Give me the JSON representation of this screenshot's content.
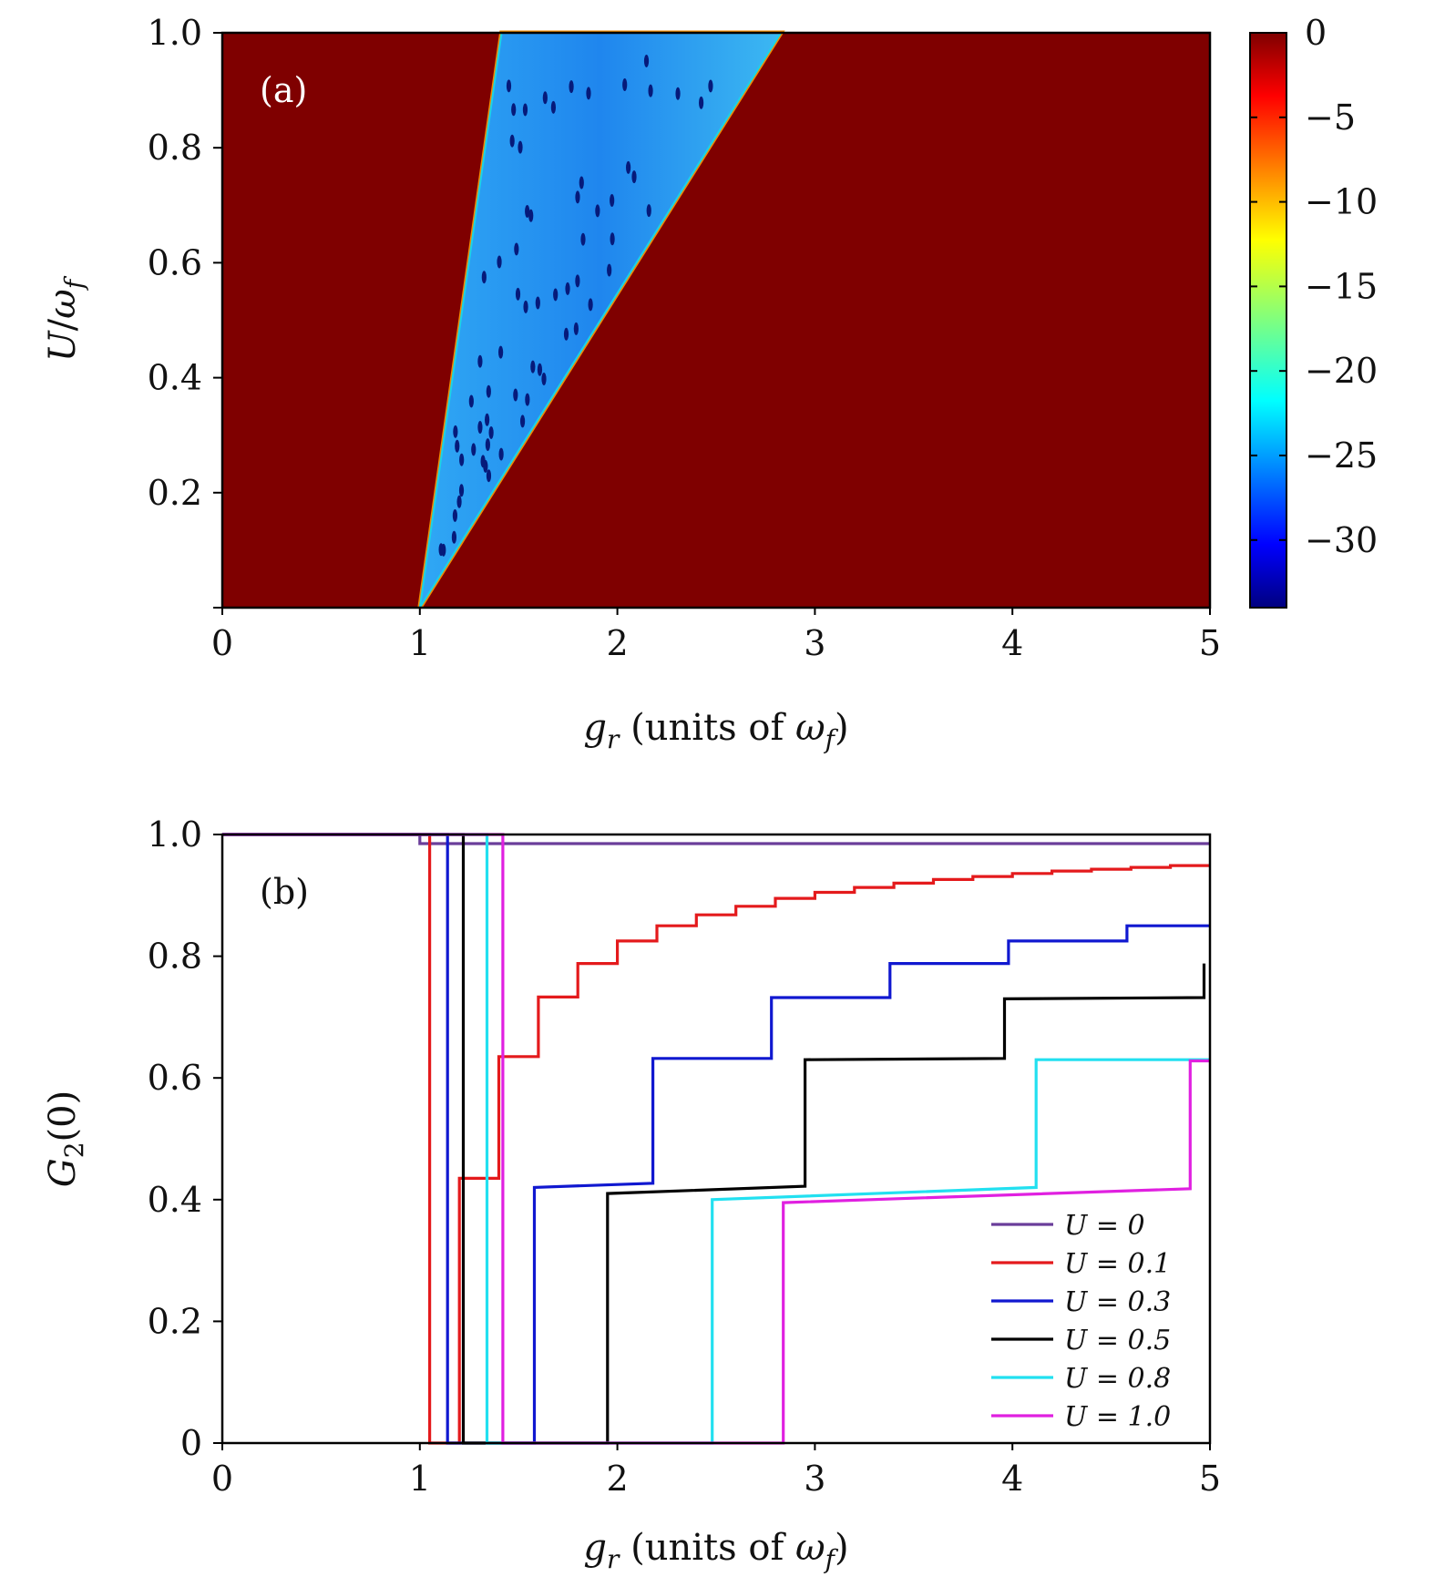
{
  "panel_a": {
    "label": "(a)",
    "xlabel": "g_r (units of ω_f)",
    "ylabel": "U/ω_f"
  },
  "panel_b": {
    "label": "(b)",
    "xlabel": "g_r (units of ω_f)",
    "ylabel": "G_2(0)"
  },
  "colors": {
    "background_region": "#7f0000",
    "region_fill": "#2a8cf0",
    "spots": "#061a7a",
    "U=0": "#6a3d9a",
    "U=0.1": "#e41a1c",
    "U=0.3": "#1018d0",
    "U=0.5": "#000000",
    "U=0.8": "#22e0f0",
    "U=1.0": "#e020e0"
  },
  "chart_data": [
    {
      "type": "heatmap",
      "title": "",
      "panel": "(a)",
      "xlabel": "g_r (units of ω_f)",
      "ylabel": "U/ω_f",
      "xlim": [
        0,
        5
      ],
      "ylim": [
        0,
        1
      ],
      "xticks": [
        "0",
        "1",
        "2",
        "3",
        "4",
        "5"
      ],
      "yticks": [
        "0.2",
        "0.4",
        "0.6",
        "0.8",
        "1.0"
      ],
      "colorbar": {
        "range": [
          -34,
          0
        ],
        "ticks": [
          "0",
          "−5",
          "−10",
          "−15",
          "−20",
          "−25",
          "−30"
        ],
        "tick_values": [
          0,
          -5,
          -10,
          -15,
          -20,
          -25,
          -30
        ],
        "colormap": "jet"
      },
      "regions": [
        {
          "description": "background value",
          "value": 0
        },
        {
          "description": "wedge of low values",
          "value": -24,
          "boundary_left": [
            [
              1.0,
              0.0
            ],
            [
              1.414,
              1.0
            ]
          ],
          "boundary_right": [
            [
              1.0,
              0.0
            ],
            [
              2.828,
              1.0
            ]
          ]
        }
      ],
      "grid": false
    },
    {
      "type": "line",
      "title": "",
      "panel": "(b)",
      "xlabel": "g_r (units of ω_f)",
      "ylabel": "G_2(0)",
      "xlim": [
        0,
        5
      ],
      "ylim": [
        0,
        1
      ],
      "xticks": [
        "0",
        "1",
        "2",
        "3",
        "4",
        "5"
      ],
      "yticks": [
        "0",
        "0.2",
        "0.4",
        "0.6",
        "0.8",
        "1.0"
      ],
      "legend_position": "bottom-right",
      "grid": false,
      "series": [
        {
          "name": "U = 0",
          "color": "#6a3d9a",
          "points": [
            [
              0,
              1.0
            ],
            [
              1.0,
              1.0
            ],
            [
              1.0,
              0.985
            ],
            [
              5,
              0.985
            ]
          ]
        },
        {
          "name": "U = 0.1",
          "color": "#e41a1c",
          "points": [
            [
              0,
              1.0
            ],
            [
              1.05,
              1.0
            ],
            [
              1.05,
              0.0
            ],
            [
              1.2,
              0.0
            ],
            [
              1.2,
              0.435
            ],
            [
              1.4,
              0.435
            ],
            [
              1.4,
              0.635
            ],
            [
              1.6,
              0.635
            ],
            [
              1.6,
              0.733
            ],
            [
              1.8,
              0.733
            ],
            [
              1.8,
              0.788
            ],
            [
              2.0,
              0.788
            ],
            [
              2.0,
              0.825
            ],
            [
              2.2,
              0.825
            ],
            [
              2.2,
              0.85
            ],
            [
              2.4,
              0.85
            ],
            [
              2.4,
              0.868
            ],
            [
              2.6,
              0.868
            ],
            [
              2.6,
              0.882
            ],
            [
              2.8,
              0.882
            ],
            [
              2.8,
              0.895
            ],
            [
              3.0,
              0.895
            ],
            [
              3.0,
              0.905
            ],
            [
              3.2,
              0.905
            ],
            [
              3.2,
              0.913
            ],
            [
              3.4,
              0.913
            ],
            [
              3.4,
              0.92
            ],
            [
              3.6,
              0.92
            ],
            [
              3.6,
              0.926
            ],
            [
              3.8,
              0.926
            ],
            [
              3.8,
              0.931
            ],
            [
              4.0,
              0.931
            ],
            [
              4.0,
              0.936
            ],
            [
              4.2,
              0.936
            ],
            [
              4.2,
              0.94
            ],
            [
              4.4,
              0.94
            ],
            [
              4.4,
              0.943
            ],
            [
              4.6,
              0.943
            ],
            [
              4.6,
              0.946
            ],
            [
              4.8,
              0.946
            ],
            [
              4.8,
              0.949
            ],
            [
              5.0,
              0.949
            ]
          ]
        },
        {
          "name": "U = 0.3",
          "color": "#1018d0",
          "points": [
            [
              0,
              1.0
            ],
            [
              1.14,
              1.0
            ],
            [
              1.14,
              0.0
            ],
            [
              1.58,
              0.0
            ],
            [
              1.58,
              0.42
            ],
            [
              2.18,
              0.427
            ],
            [
              2.18,
              0.632
            ],
            [
              2.78,
              0.632
            ],
            [
              2.78,
              0.732
            ],
            [
              3.38,
              0.732
            ],
            [
              3.38,
              0.788
            ],
            [
              3.98,
              0.788
            ],
            [
              3.98,
              0.825
            ],
            [
              4.58,
              0.825
            ],
            [
              4.58,
              0.85
            ],
            [
              5.0,
              0.85
            ]
          ]
        },
        {
          "name": "U = 0.5",
          "color": "#000000",
          "points": [
            [
              0,
              1.0
            ],
            [
              1.22,
              1.0
            ],
            [
              1.22,
              0.0
            ],
            [
              1.95,
              0.0
            ],
            [
              1.95,
              0.41
            ],
            [
              2.95,
              0.422
            ],
            [
              2.95,
              0.63
            ],
            [
              3.96,
              0.632
            ],
            [
              3.96,
              0.73
            ],
            [
              4.97,
              0.732
            ],
            [
              4.97,
              0.788
            ]
          ]
        },
        {
          "name": "U = 0.8",
          "color": "#22e0f0",
          "points": [
            [
              0,
              1.0
            ],
            [
              1.34,
              1.0
            ],
            [
              1.34,
              0.0
            ],
            [
              2.48,
              0.0
            ],
            [
              2.48,
              0.4
            ],
            [
              4.12,
              0.42
            ],
            [
              4.12,
              0.63
            ],
            [
              5.0,
              0.63
            ]
          ]
        },
        {
          "name": "U = 1.0",
          "color": "#e020e0",
          "points": [
            [
              0,
              1.0
            ],
            [
              1.42,
              1.0
            ],
            [
              1.42,
              0.0
            ],
            [
              2.84,
              0.0
            ],
            [
              2.84,
              0.395
            ],
            [
              4.9,
              0.418
            ],
            [
              4.9,
              0.628
            ],
            [
              5.0,
              0.628
            ]
          ]
        }
      ]
    }
  ]
}
